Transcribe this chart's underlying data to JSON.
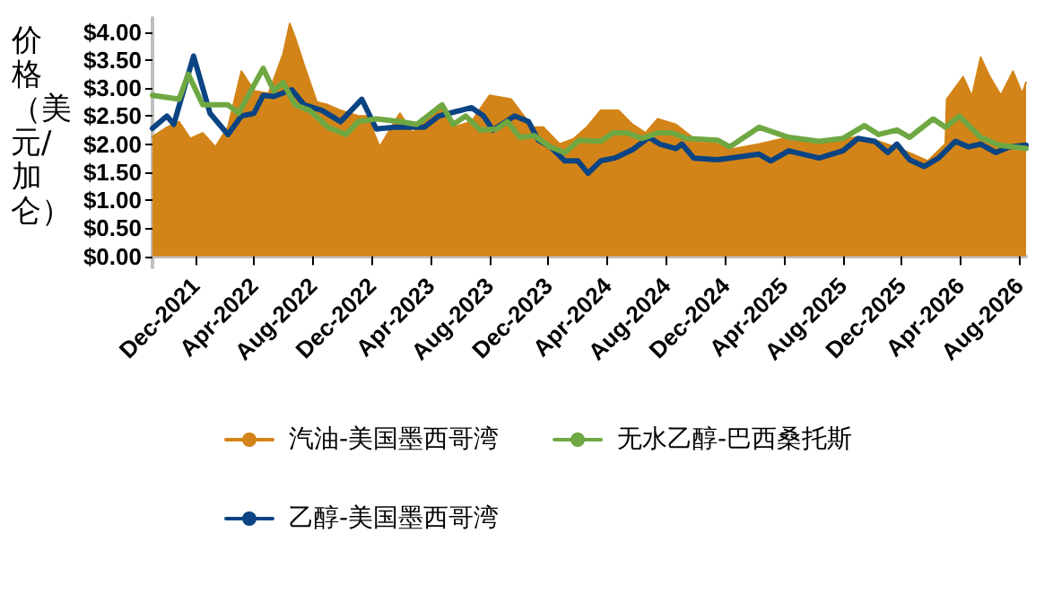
{
  "chart_data": {
    "type": "line",
    "ylabel": "价格（美元/加仑）",
    "xlim": [
      "2021-09-03",
      "2026-08-15"
    ],
    "xticks": [
      {
        "value": "2021-12-01",
        "label": "Dec-2021"
      },
      {
        "value": "2022-04-01",
        "label": "Apr-2022"
      },
      {
        "value": "2022-08-01",
        "label": "Aug-2022"
      },
      {
        "value": "2022-12-01",
        "label": "Dec-2022"
      },
      {
        "value": "2023-04-01",
        "label": "Apr-2023"
      },
      {
        "value": "2023-08-01",
        "label": "Aug-2023"
      },
      {
        "value": "2023-12-01",
        "label": "Dec-2023"
      },
      {
        "value": "2024-04-01",
        "label": "Apr-2024"
      },
      {
        "value": "2024-08-01",
        "label": "Aug-2024"
      },
      {
        "value": "2024-12-01",
        "label": "Dec-2024"
      },
      {
        "value": "2025-04-01",
        "label": "Apr-2025"
      },
      {
        "value": "2025-08-01",
        "label": "Aug-2025"
      },
      {
        "value": "2025-12-01",
        "label": "Dec-2025"
      },
      {
        "value": "2026-04-01",
        "label": "Apr-2026"
      },
      {
        "value": "2026-08-01",
        "label": "Aug-2026"
      }
    ],
    "ylim": [
      -0.2,
      4.25
    ],
    "yticks": [
      {
        "value": 0,
        "label": "$0.00"
      },
      {
        "value": 0.5,
        "label": "$0.50"
      },
      {
        "value": 1,
        "label": "$1.00"
      },
      {
        "value": 1.5,
        "label": "$1.50"
      },
      {
        "value": 2,
        "label": "$2.00"
      },
      {
        "value": 2.5,
        "label": "$2.50"
      },
      {
        "value": 3,
        "label": "$3.00"
      },
      {
        "value": 3.5,
        "label": "$3.50"
      },
      {
        "value": 4,
        "label": "$4.00"
      }
    ],
    "legend": "bottom",
    "marker": "none",
    "line_style": "solid",
    "series": [
      {
        "name": "汽油-美国墨西哥湾",
        "type": "area",
        "color": "#d38418",
        "x": [
          "2021-09-03",
          "2021-10-03",
          "2021-10-28",
          "2021-11-20",
          "2021-12-16",
          "2022-01-11",
          "2022-02-06",
          "2022-03-06",
          "2022-04-01",
          "2022-05-01",
          "2022-05-31",
          "2022-06-14",
          "2022-06-25",
          "2022-07-14",
          "2022-08-09",
          "2022-09-01",
          "2022-09-27",
          "2022-11-03",
          "2022-11-21",
          "2022-12-17",
          "2023-01-17",
          "2023-01-28",
          "2023-02-23",
          "2023-04-18",
          "2023-05-18",
          "2023-06-25",
          "2023-08-01",
          "2023-09-15",
          "2023-10-29",
          "2023-11-21",
          "2023-12-24",
          "2024-01-23",
          "2024-02-18",
          "2024-03-18",
          "2024-04-24",
          "2024-05-23",
          "2024-06-19",
          "2024-07-14",
          "2024-08-21",
          "2024-09-27",
          "2024-11-15",
          "2024-12-10",
          "2025-02-09",
          "2025-04-01",
          "2025-06-13",
          "2025-08-28",
          "2025-10-14",
          "2025-12-02",
          "2026-01-24",
          "2026-03-01",
          "2026-03-04",
          "2026-04-07",
          "2026-04-25",
          "2026-05-13",
          "2026-06-01",
          "2026-06-24",
          "2026-07-19",
          "2026-08-07",
          "2026-08-15"
        ],
        "values": [
          2.13,
          2.3,
          2.4,
          2.1,
          2.2,
          1.95,
          2.3,
          3.3,
          2.95,
          2.9,
          3.6,
          4.15,
          3.9,
          3.4,
          2.75,
          2.7,
          2.6,
          2.5,
          2.5,
          1.95,
          2.4,
          2.55,
          2.2,
          2.7,
          2.3,
          2.4,
          2.87,
          2.8,
          2.3,
          2.3,
          2.0,
          2.1,
          2.3,
          2.6,
          2.6,
          2.35,
          2.2,
          2.45,
          2.35,
          2.1,
          2.0,
          1.9,
          2.0,
          2.1,
          2.05,
          2.12,
          2.05,
          1.9,
          1.7,
          2.0,
          2.8,
          3.2,
          2.85,
          3.55,
          3.2,
          2.87,
          3.3,
          2.9,
          3.1
        ]
      },
      {
        "name": "乙醇-美国墨西哥湾",
        "color": "#0b4483",
        "x": [
          "2021-09-03",
          "2021-10-03",
          "2021-10-17",
          "2021-11-27",
          "2021-12-31",
          "2022-02-06",
          "2022-03-06",
          "2022-04-01",
          "2022-04-20",
          "2022-05-12",
          "2022-06-18",
          "2022-07-14",
          "2022-08-20",
          "2022-09-27",
          "2022-11-10",
          "2022-12-10",
          "2023-01-17",
          "2023-03-19",
          "2023-04-18",
          "2023-06-02",
          "2023-06-25",
          "2023-07-20",
          "2023-08-08",
          "2023-09-22",
          "2023-10-21",
          "2023-11-10",
          "2023-12-05",
          "2024-01-04",
          "2024-01-31",
          "2024-02-21",
          "2024-03-18",
          "2024-04-16",
          "2024-05-23",
          "2024-06-26",
          "2024-07-18",
          "2024-08-21",
          "2024-09-02",
          "2024-09-27",
          "2024-11-15",
          "2024-12-10",
          "2025-02-09",
          "2025-03-05",
          "2025-04-11",
          "2025-06-13",
          "2025-08-01",
          "2025-09-01",
          "2025-10-06",
          "2025-11-02",
          "2025-11-21",
          "2025-12-17",
          "2026-01-16",
          "2026-02-15",
          "2026-03-22",
          "2026-04-18",
          "2026-05-13",
          "2026-06-13",
          "2026-07-12",
          "2026-08-15"
        ],
        "values": [
          2.28,
          2.5,
          2.35,
          3.57,
          2.55,
          2.17,
          2.5,
          2.55,
          2.87,
          2.85,
          2.97,
          2.7,
          2.6,
          2.4,
          2.8,
          2.27,
          2.3,
          2.3,
          2.5,
          2.6,
          2.65,
          2.5,
          2.25,
          2.5,
          2.4,
          2.07,
          1.95,
          1.7,
          1.7,
          1.48,
          1.7,
          1.75,
          1.9,
          2.12,
          2.0,
          1.92,
          2.0,
          1.75,
          1.72,
          1.75,
          1.82,
          1.7,
          1.88,
          1.75,
          1.88,
          2.1,
          2.05,
          1.85,
          2.0,
          1.72,
          1.6,
          1.75,
          2.05,
          1.95,
          2.0,
          1.85,
          1.95,
          1.98
        ]
      },
      {
        "name": "无水乙醇-巴西桑托斯",
        "color": "#6fa842",
        "x": [
          "2021-09-03",
          "2021-10-28",
          "2021-11-16",
          "2021-12-16",
          "2022-02-06",
          "2022-02-28",
          "2022-04-20",
          "2022-05-12",
          "2022-05-31",
          "2022-06-25",
          "2022-07-25",
          "2022-09-01",
          "2022-10-08",
          "2022-11-03",
          "2022-12-10",
          "2023-01-28",
          "2023-03-04",
          "2023-04-25",
          "2023-05-18",
          "2023-06-13",
          "2023-07-13",
          "2023-08-16",
          "2023-09-07",
          "2023-10-03",
          "2023-11-02",
          "2023-12-05",
          "2024-01-04",
          "2024-02-03",
          "2024-03-18",
          "2024-04-13",
          "2024-05-12",
          "2024-06-11",
          "2024-07-14",
          "2024-08-13",
          "2024-09-12",
          "2024-11-15",
          "2024-12-10",
          "2025-02-09",
          "2025-04-11",
          "2025-06-13",
          "2025-08-01",
          "2025-09-15",
          "2025-10-14",
          "2025-11-21",
          "2025-12-17",
          "2026-02-04",
          "2026-03-01",
          "2026-03-30",
          "2026-05-13",
          "2026-06-20",
          "2026-08-15"
        ],
        "values": [
          2.87,
          2.8,
          3.25,
          2.7,
          2.7,
          2.55,
          3.35,
          2.95,
          3.1,
          2.7,
          2.6,
          2.3,
          2.17,
          2.4,
          2.45,
          2.4,
          2.35,
          2.7,
          2.35,
          2.5,
          2.25,
          2.27,
          2.4,
          2.12,
          2.15,
          1.95,
          1.85,
          2.07,
          2.05,
          2.2,
          2.2,
          2.1,
          2.2,
          2.2,
          2.1,
          2.07,
          1.95,
          2.3,
          2.12,
          2.05,
          2.1,
          2.33,
          2.17,
          2.25,
          2.12,
          2.45,
          2.3,
          2.5,
          2.12,
          1.98,
          1.92
        ]
      }
    ]
  }
}
